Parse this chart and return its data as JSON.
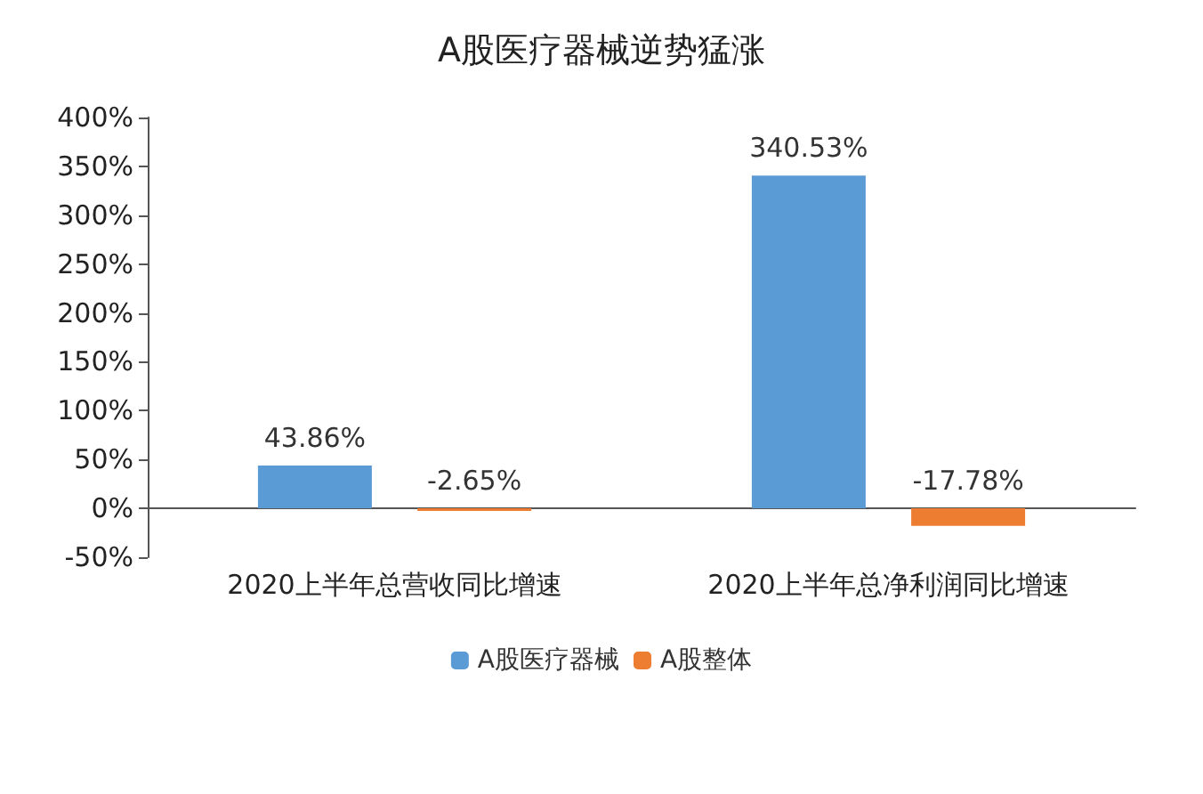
{
  "chart_data": {
    "type": "bar",
    "title": "A股医疗器械逆势猛涨",
    "categories": [
      "2020上半年总营收同比增速",
      "2020上半年总净利润同比增速"
    ],
    "series": [
      {
        "name": "A股医疗器械",
        "color": "#5b9bd5",
        "values": [
          43.86,
          340.53
        ],
        "value_labels": [
          "43.86%",
          "340.53%"
        ]
      },
      {
        "name": "A股整体",
        "color": "#ed7d31",
        "values": [
          -2.65,
          -17.78
        ],
        "value_labels": [
          "-2.65%",
          "-17.78%"
        ]
      }
    ],
    "ylim": [
      -50,
      400
    ],
    "yticks": [
      {
        "value": -50,
        "label": "-50%"
      },
      {
        "value": 0,
        "label": "0%"
      },
      {
        "value": 50,
        "label": "50%"
      },
      {
        "value": 100,
        "label": "100%"
      },
      {
        "value": 150,
        "label": "150%"
      },
      {
        "value": 200,
        "label": "200%"
      },
      {
        "value": 250,
        "label": "250%"
      },
      {
        "value": 300,
        "label": "300%"
      },
      {
        "value": 350,
        "label": "350%"
      },
      {
        "value": 400,
        "label": "400%"
      }
    ],
    "legend": "bottom"
  }
}
